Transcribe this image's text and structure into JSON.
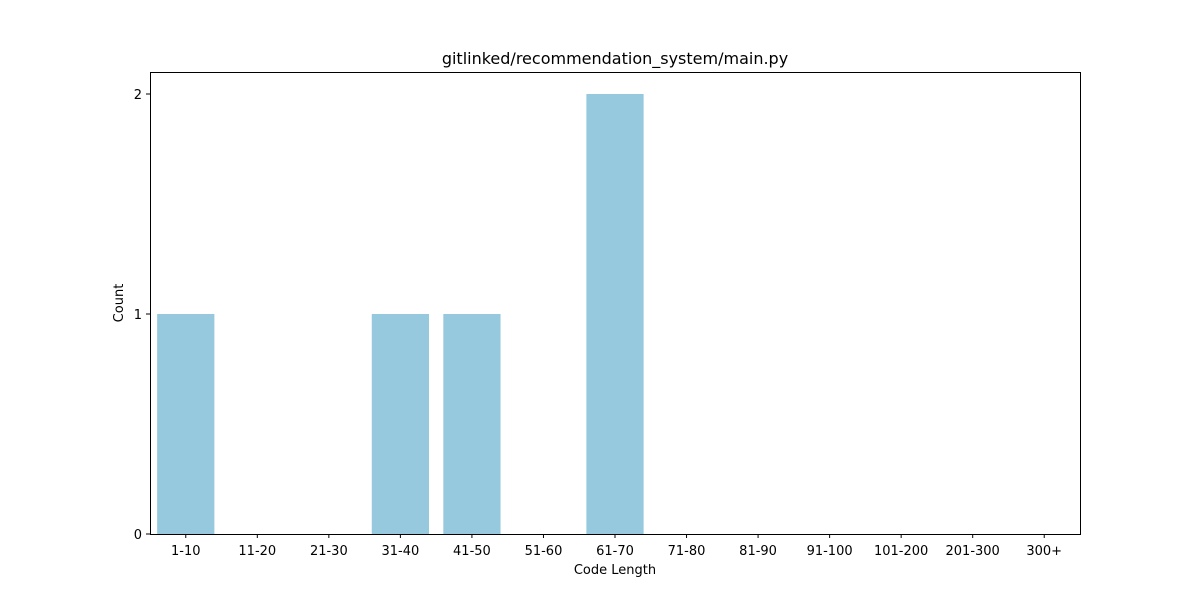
{
  "chart_data": {
    "type": "bar",
    "title": "gitlinked/recommendation_system/main.py",
    "xlabel": "Code Length",
    "ylabel": "Count",
    "categories": [
      "1-10",
      "11-20",
      "21-30",
      "31-40",
      "41-50",
      "51-60",
      "61-70",
      "71-80",
      "81-90",
      "91-100",
      "101-200",
      "201-300",
      "300+"
    ],
    "values": [
      1,
      0,
      0,
      1,
      1,
      0,
      2,
      0,
      0,
      0,
      0,
      0,
      0
    ],
    "ylim": [
      0,
      2.1
    ],
    "yticks": [
      0,
      1,
      2
    ],
    "bar_color": "#96c9de",
    "grid": false,
    "legend": "none"
  }
}
